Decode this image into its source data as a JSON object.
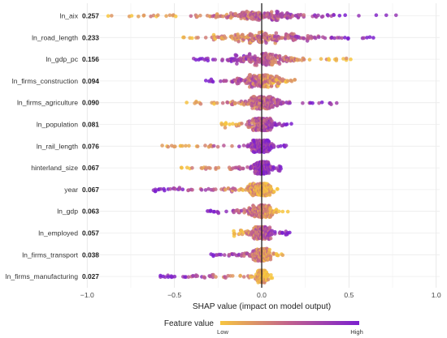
{
  "chart_data": {
    "type": "scatter",
    "title": "",
    "xlabel": "SHAP value (impact on model output)",
    "ylabel": "",
    "xlim": [
      -1.02,
      1.02
    ],
    "xticks": [
      -1.0,
      -0.5,
      0.0,
      0.5,
      1.0
    ],
    "xtick_labels": [
      "−1.0",
      "−0.5",
      "0.0",
      "0.5",
      "1.0"
    ],
    "grid": true,
    "zero_line": 0,
    "colors": {
      "low": "#f7c53f",
      "high": "#7b1fcf",
      "mid": "#c0608e",
      "zero_line": "#111111",
      "grid": "#e6e6e6"
    },
    "features": [
      {
        "name": "ln_aix",
        "importance": "0.257",
        "min": -0.88,
        "max": 0.77,
        "spread": 0.32,
        "low_side": "negative"
      },
      {
        "name": "ln_road_length",
        "importance": "0.233",
        "min": -0.45,
        "max": 0.64,
        "spread": 0.33,
        "low_side": "negative"
      },
      {
        "name": "ln_gdp_pc",
        "importance": "0.156",
        "min": -0.39,
        "max": 0.51,
        "spread": 0.24,
        "low_side": "positive"
      },
      {
        "name": "ln_firms_construction",
        "importance": "0.094",
        "min": -0.32,
        "max": 0.19,
        "spread": 0.14,
        "low_side": "positive"
      },
      {
        "name": "ln_firms_agriculture",
        "importance": "0.090",
        "min": -0.43,
        "max": 0.43,
        "spread": 0.13,
        "low_side": "negative"
      },
      {
        "name": "ln_population",
        "importance": "0.081",
        "min": -0.23,
        "max": 0.17,
        "spread": 0.07,
        "low_side": "negative"
      },
      {
        "name": "ln_rail_length",
        "importance": "0.076",
        "min": -0.57,
        "max": 0.14,
        "spread": 0.07,
        "low_side": "negative"
      },
      {
        "name": "hinterland_size",
        "importance": "0.067",
        "min": -0.46,
        "max": 0.11,
        "spread": 0.05,
        "low_side": "negative"
      },
      {
        "name": "year",
        "importance": "0.067",
        "min": -0.62,
        "max": 0.09,
        "spread": 0.08,
        "low_side": "positive"
      },
      {
        "name": "ln_gdp",
        "importance": "0.063",
        "min": -0.31,
        "max": 0.15,
        "spread": 0.08,
        "low_side": "positive"
      },
      {
        "name": "ln_employed",
        "importance": "0.057",
        "min": -0.16,
        "max": 0.16,
        "spread": 0.06,
        "low_side": "negative"
      },
      {
        "name": "ln_firms_transport",
        "importance": "0.038",
        "min": -0.29,
        "max": 0.12,
        "spread": 0.05,
        "low_side": "positive"
      },
      {
        "name": "ln_firms_manufacturing",
        "importance": "0.027",
        "min": -0.58,
        "max": 0.06,
        "spread": 0.03,
        "low_side": "positive"
      }
    ],
    "legend": {
      "title": "Feature value",
      "low_label": "Low",
      "high_label": "High",
      "placement": "bottom"
    }
  }
}
